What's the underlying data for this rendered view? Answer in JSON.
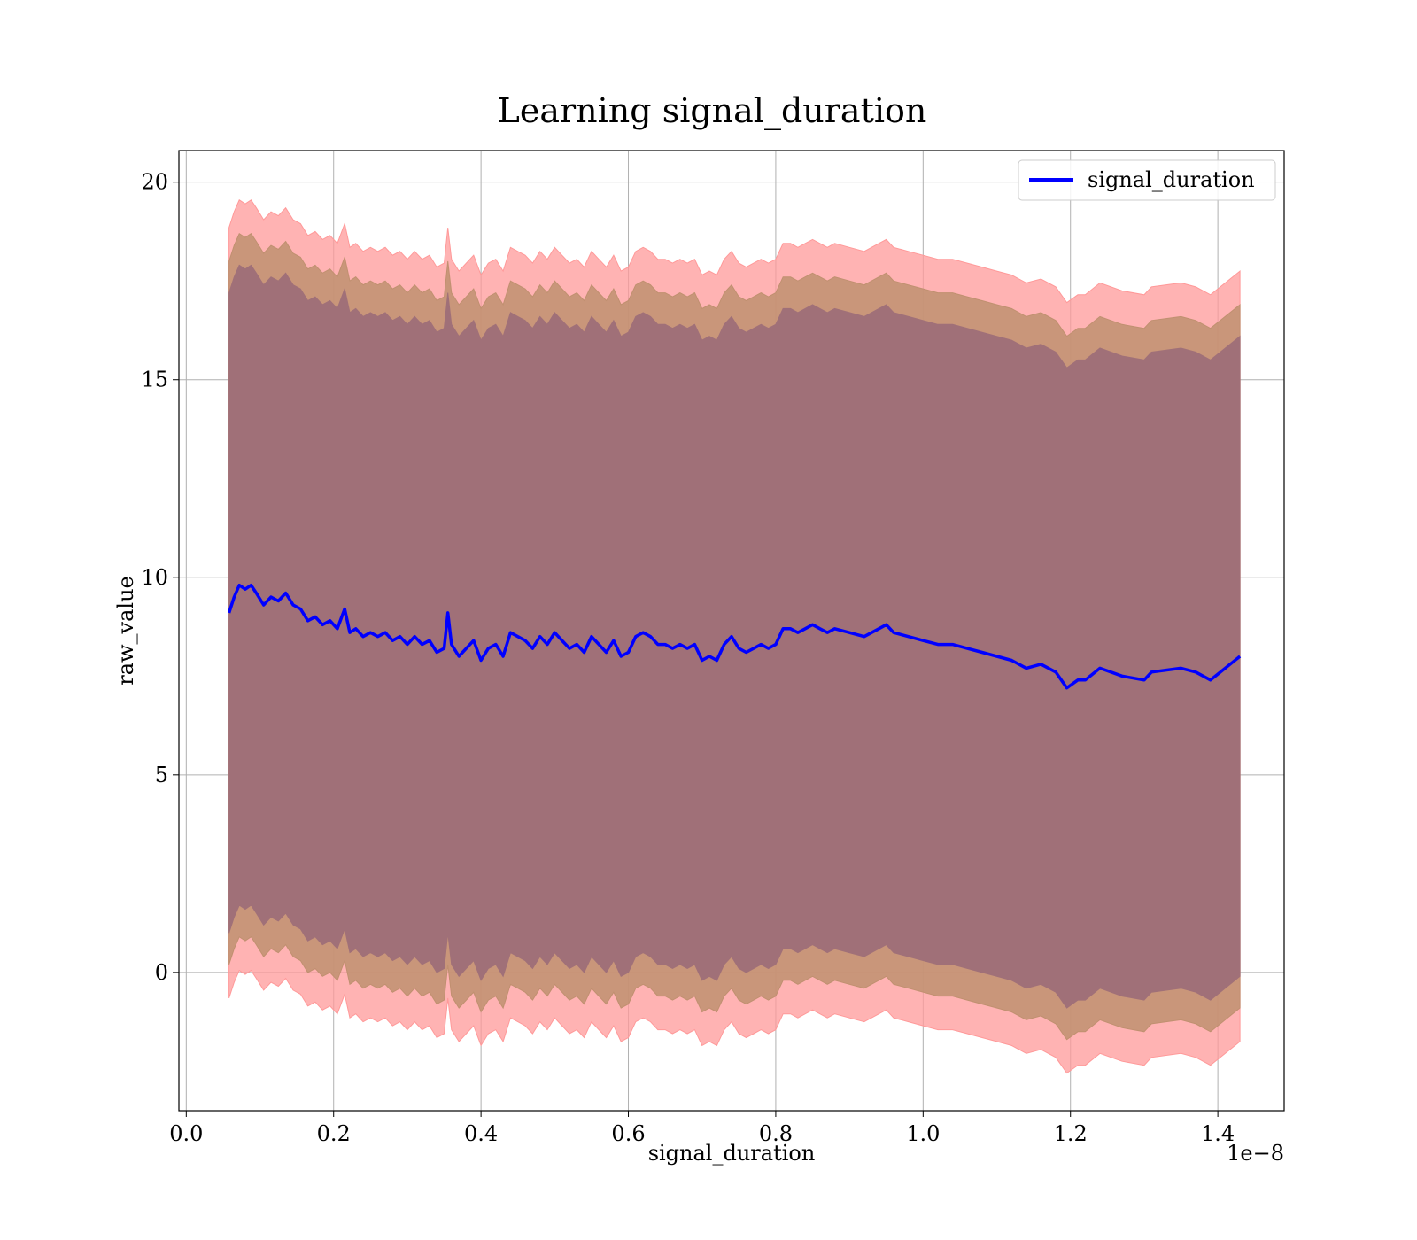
{
  "chart_data": {
    "type": "line",
    "title": "Learning signal_duration",
    "xlabel": "signal_duration",
    "ylabel": "raw_value",
    "x_offset_label": "1e−8",
    "xlim": [
      -0.01,
      1.49
    ],
    "ylim": [
      -3.5,
      20.8
    ],
    "xticks": [
      0.0,
      0.2,
      0.4,
      0.6,
      0.8,
      1.0,
      1.2,
      1.4
    ],
    "xtick_labels": [
      "0.0",
      "0.2",
      "0.4",
      "0.6",
      "0.8",
      "1.0",
      "1.2",
      "1.4"
    ],
    "yticks": [
      0,
      5,
      10,
      15,
      20
    ],
    "ytick_labels": [
      "0",
      "5",
      "10",
      "15",
      "20"
    ],
    "grid": true,
    "legend": {
      "position": "top-right",
      "entries": [
        "signal_duration"
      ]
    },
    "colors": {
      "line": "#0000ff",
      "band_3sd": "#ff9999",
      "band_2sd": "#c09070",
      "band_1sd": "#a07078"
    },
    "series": [
      {
        "name": "signal_duration",
        "x": [
          0.058,
          0.065,
          0.072,
          0.08,
          0.088,
          0.095,
          0.105,
          0.115,
          0.125,
          0.135,
          0.145,
          0.155,
          0.165,
          0.175,
          0.185,
          0.195,
          0.205,
          0.215,
          0.222,
          0.23,
          0.24,
          0.25,
          0.26,
          0.27,
          0.28,
          0.29,
          0.3,
          0.31,
          0.32,
          0.33,
          0.34,
          0.35,
          0.355,
          0.36,
          0.37,
          0.38,
          0.39,
          0.4,
          0.41,
          0.42,
          0.43,
          0.44,
          0.45,
          0.46,
          0.47,
          0.48,
          0.49,
          0.5,
          0.51,
          0.52,
          0.53,
          0.54,
          0.55,
          0.56,
          0.57,
          0.58,
          0.59,
          0.6,
          0.61,
          0.62,
          0.63,
          0.64,
          0.65,
          0.66,
          0.67,
          0.68,
          0.69,
          0.7,
          0.71,
          0.72,
          0.73,
          0.74,
          0.75,
          0.76,
          0.77,
          0.78,
          0.79,
          0.8,
          0.81,
          0.82,
          0.83,
          0.84,
          0.85,
          0.86,
          0.87,
          0.88,
          0.9,
          0.92,
          0.94,
          0.95,
          0.96,
          0.98,
          1.0,
          1.02,
          1.04,
          1.06,
          1.08,
          1.1,
          1.12,
          1.14,
          1.16,
          1.18,
          1.195,
          1.21,
          1.22,
          1.24,
          1.27,
          1.3,
          1.31,
          1.35,
          1.37,
          1.39,
          1.43
        ],
        "y": [
          9.1,
          9.5,
          9.8,
          9.7,
          9.8,
          9.6,
          9.3,
          9.5,
          9.4,
          9.6,
          9.3,
          9.2,
          8.9,
          9.0,
          8.8,
          8.9,
          8.7,
          9.2,
          8.6,
          8.7,
          8.5,
          8.6,
          8.5,
          8.6,
          8.4,
          8.5,
          8.3,
          8.5,
          8.3,
          8.4,
          8.1,
          8.2,
          9.1,
          8.3,
          8.0,
          8.2,
          8.4,
          7.9,
          8.2,
          8.3,
          8.0,
          8.6,
          8.5,
          8.4,
          8.2,
          8.5,
          8.3,
          8.6,
          8.4,
          8.2,
          8.3,
          8.1,
          8.5,
          8.3,
          8.1,
          8.4,
          8.0,
          8.1,
          8.5,
          8.6,
          8.5,
          8.3,
          8.3,
          8.2,
          8.3,
          8.2,
          8.3,
          7.9,
          8.0,
          7.9,
          8.3,
          8.5,
          8.2,
          8.1,
          8.2,
          8.3,
          8.2,
          8.3,
          8.7,
          8.7,
          8.6,
          8.7,
          8.8,
          8.7,
          8.6,
          8.7,
          8.6,
          8.5,
          8.7,
          8.8,
          8.6,
          8.5,
          8.4,
          8.3,
          8.3,
          8.2,
          8.1,
          8.0,
          7.9,
          7.7,
          7.8,
          7.6,
          7.2,
          7.4,
          7.4,
          7.7,
          7.5,
          7.4,
          7.6,
          7.7,
          7.6,
          7.4,
          8.0
        ]
      }
    ],
    "bands": [
      {
        "sd": 3,
        "half_width": 9.75
      },
      {
        "sd": 2,
        "half_width": 8.9
      },
      {
        "sd": 1,
        "half_width": 8.1
      }
    ]
  }
}
